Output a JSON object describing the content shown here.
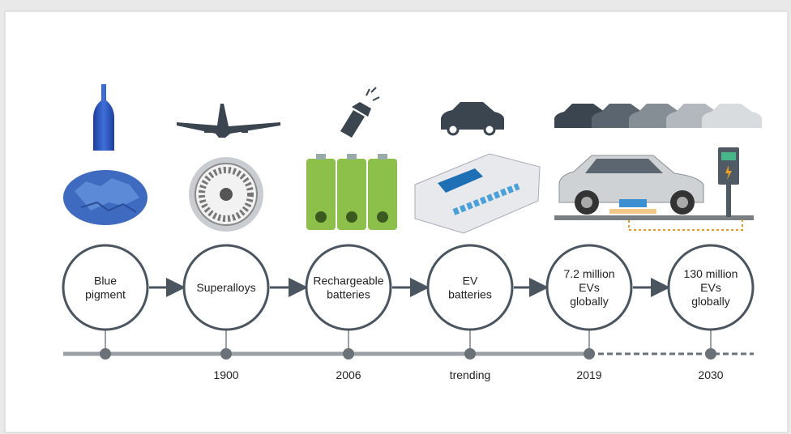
{
  "stages": [
    {
      "label": [
        "Blue",
        "pigment"
      ]
    },
    {
      "label": [
        "Superalloys"
      ],
      "year": "1900"
    },
    {
      "label": [
        "Rechargeable",
        "batteries"
      ],
      "year": "2006"
    },
    {
      "label": [
        "EV",
        "batteries"
      ],
      "year": "trending"
    },
    {
      "label": [
        "7.2 million",
        "EVs",
        "globally"
      ],
      "year": "2019"
    },
    {
      "label": [
        "130 million",
        "EVs",
        "globally"
      ],
      "year": "2030"
    }
  ]
}
